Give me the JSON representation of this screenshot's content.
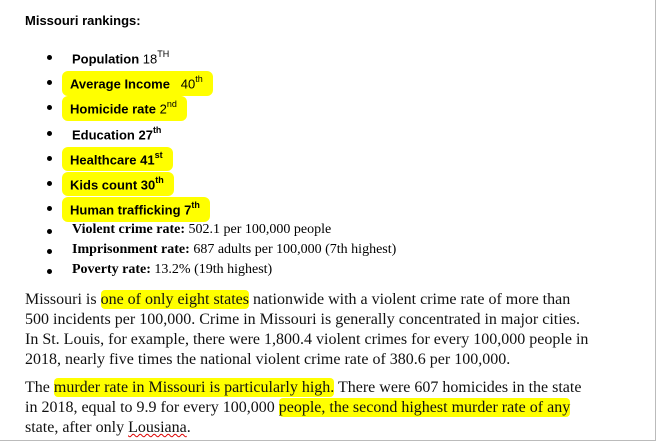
{
  "title": "Missouri rankings:",
  "rankings": [
    {
      "label": "Population",
      "value": "18",
      "suffix": "TH",
      "highlight": false,
      "value_bold": false
    },
    {
      "label": "Average Income",
      "value": "40",
      "suffix": "th",
      "highlight": true,
      "value_bold": false
    },
    {
      "label": "Homicide rate",
      "value": "2",
      "suffix": "nd",
      "highlight": true,
      "value_bold": false
    },
    {
      "label": "Education",
      "value": "27",
      "suffix": "th",
      "highlight": false,
      "value_bold": true
    },
    {
      "label": "Healthcare",
      "value": "41",
      "suffix": "st",
      "highlight": true,
      "value_bold": true
    },
    {
      "label": "Kids count",
      "value": "30",
      "suffix": "th",
      "highlight": true,
      "value_bold": true
    },
    {
      "label": "Human trafficking",
      "value": "7",
      "suffix": "th",
      "highlight": true,
      "value_bold": true
    }
  ],
  "stats": [
    {
      "label": "Violent crime rate:",
      "text": "502.1 per 100,000 people"
    },
    {
      "label": "Imprisonment rate:",
      "text": "687 adults per 100,000 (7th highest)"
    },
    {
      "label": "Poverty rate:",
      "text": "13.2% (19th highest)"
    }
  ],
  "paragraphs": [
    {
      "lines": [
        [
          {
            "text": "Missouri is "
          },
          {
            "text": "one of only eight states",
            "highlight": true
          },
          {
            "text": " nationwide with a violent crime rate of more than"
          }
        ],
        [
          {
            "text": "500 incidents per 100,000. Crime in Missouri is generally concentrated in major cities."
          }
        ],
        [
          {
            "text": "In St. Louis, for example, there were 1,800.4 violent crimes for every 100,000 people in"
          }
        ],
        [
          {
            "text": "2018, nearly five times the national violent crime rate of 380.6 per 100,000."
          }
        ]
      ]
    },
    {
      "lines": [
        [
          {
            "text": "The "
          },
          {
            "text": "murder rate in Missouri is particularly high.",
            "highlight": true
          },
          {
            "text": " There were 607 homicides in the state"
          }
        ],
        [
          {
            "text": "in 2018, equal to 9.9 for every 100,000 "
          },
          {
            "text": "people, the second highest murder rate of any",
            "highlight": true
          }
        ],
        [
          {
            "text": "state, after only "
          },
          {
            "text": "Lousiana",
            "misspelled": true
          },
          {
            "text": "."
          }
        ]
      ]
    }
  ]
}
